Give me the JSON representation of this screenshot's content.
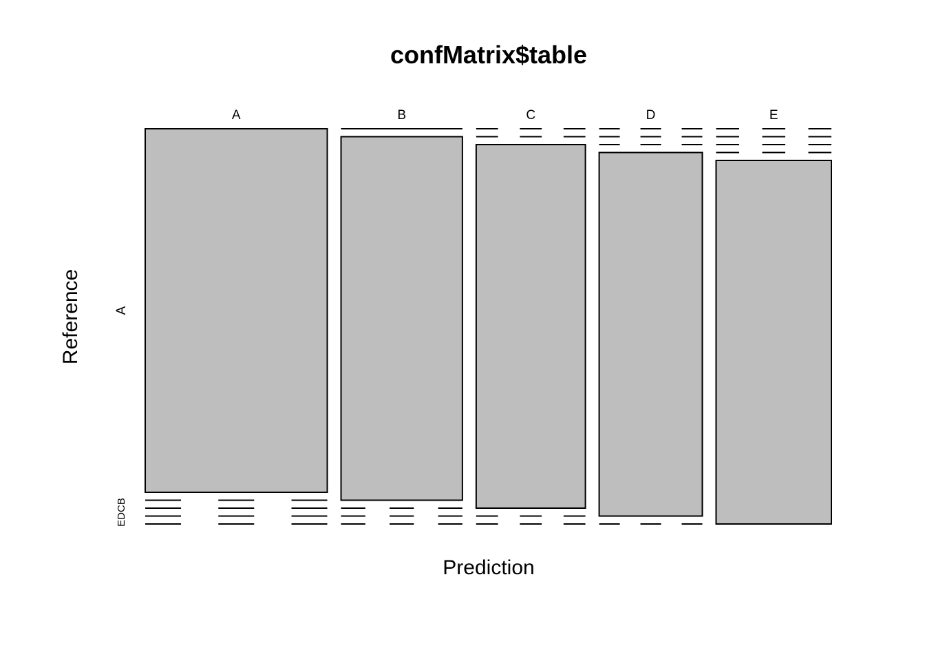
{
  "chart_data": {
    "type": "mosaic",
    "title": "confMatrix$table",
    "xlabel": "Prediction",
    "ylabel": "Reference",
    "x_categories": [
      "A",
      "B",
      "C",
      "D",
      "E"
    ],
    "y_categories": [
      "A",
      "B",
      "C",
      "D",
      "E"
    ],
    "y_tick_labels": [
      "A",
      "B",
      "C",
      "D",
      "E"
    ],
    "column_shares": [
      0.3,
      0.2,
      0.18,
      0.17,
      0.19
    ],
    "cells": [
      {
        "prediction": "A",
        "reference": "A",
        "share": 1.0
      },
      {
        "prediction": "B",
        "reference": "B",
        "share": 0.995
      },
      {
        "prediction": "C",
        "reference": "C",
        "share": 0.99
      },
      {
        "prediction": "D",
        "reference": "D",
        "share": 0.99
      },
      {
        "prediction": "E",
        "reference": "E",
        "share": 0.985
      }
    ],
    "fill_color": "#bebebe",
    "stroke_color": "#000000",
    "background": "#ffffff"
  }
}
